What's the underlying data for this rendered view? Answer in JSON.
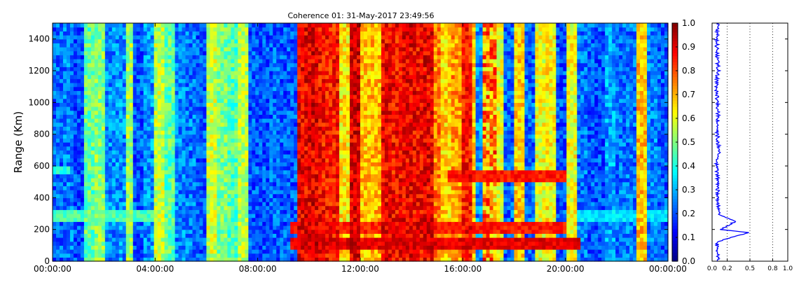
{
  "chart_data": [
    {
      "type": "heatmap",
      "title": "Coherence 01: 31-May-2017 23:49:56",
      "xlabel": "",
      "ylabel": "Range (Km)",
      "x_ticks": [
        "00:00:00",
        "04:00:00",
        "08:00:00",
        "12:00:00",
        "16:00:00",
        "20:00:00",
        "00:00:00"
      ],
      "xlim_hours": [
        0,
        24
      ],
      "y_ticks": [
        "0",
        "200",
        "400",
        "600",
        "800",
        "1000",
        "1200",
        "1400"
      ],
      "ylim": [
        0,
        1500
      ],
      "colormap": "jet",
      "colorbar": {
        "ticks": [
          "0.0",
          "0.1",
          "0.2",
          "0.3",
          "0.4",
          "0.5",
          "0.6",
          "0.7",
          "0.8",
          "0.9",
          "1.0"
        ],
        "range": [
          0,
          1
        ]
      },
      "features": {
        "background_coherence": 0.15,
        "high_coherence_period_hours": [
          9.5,
          16.5
        ],
        "high_coherence_level": 0.85,
        "stripe_period_hours": 0.4,
        "echo_bands": [
          {
            "start_h": 0,
            "end_h": 4.2,
            "range_km": 285,
            "value": 0.5
          },
          {
            "start_h": 0,
            "end_h": 0.7,
            "range_km": 580,
            "value": 0.45
          },
          {
            "start_h": 9.3,
            "end_h": 20.6,
            "range_km": 110,
            "value": 0.95
          },
          {
            "start_h": 9.3,
            "end_h": 20.0,
            "range_km": 210,
            "value": 0.9
          },
          {
            "start_h": 15.4,
            "end_h": 20.0,
            "range_km": 540,
            "value": 0.9
          },
          {
            "start_h": 20.0,
            "end_h": 24.0,
            "range_km": 290,
            "value": 0.4
          }
        ],
        "vertical_feature_hours": [
          16.8,
          17.3
        ]
      }
    },
    {
      "type": "line",
      "xlabel": "",
      "ylabel": "",
      "x_ticks": [
        "0.0",
        "0.2",
        "0.5",
        "0.8",
        "1.0"
      ],
      "xlim": [
        0,
        1
      ],
      "ylim": [
        0,
        1500
      ],
      "grid": "vertical dotted",
      "series_color": "#0000ff",
      "series": [
        {
          "range_km": [
            0,
            60,
            120,
            180,
            200,
            230,
            250,
            270,
            290,
            320,
            400,
            500,
            600,
            700,
            800,
            900,
            1000,
            1100,
            1200,
            1300,
            1400,
            1500
          ],
          "values": [
            0.07,
            0.08,
            0.06,
            0.48,
            0.12,
            0.22,
            0.3,
            0.2,
            0.1,
            0.08,
            0.07,
            0.08,
            0.06,
            0.09,
            0.07,
            0.08,
            0.07,
            0.06,
            0.08,
            0.07,
            0.06,
            0.08
          ]
        }
      ]
    }
  ]
}
